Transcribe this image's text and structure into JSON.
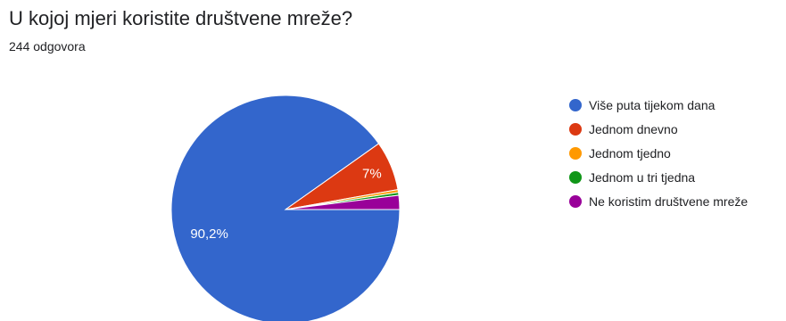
{
  "header": {
    "title": "U kojoj mjeri koristite društvene mreže?",
    "subtitle": "244 odgovora"
  },
  "chart_data": {
    "type": "pie",
    "categories": [
      "Više puta tijekom dana",
      "Jednom dnevno",
      "Jednom tjedno",
      "Jednom u tri tjedna",
      "Ne koristim društvene mreže"
    ],
    "values": [
      90.2,
      7.0,
      0.4,
      0.4,
      2.0
    ],
    "colors": [
      "#3366cc",
      "#dc3912",
      "#ff9900",
      "#109618",
      "#990099"
    ],
    "data_labels": [
      "90,2%",
      "7%",
      "",
      "",
      ""
    ],
    "legend_position": "right"
  }
}
